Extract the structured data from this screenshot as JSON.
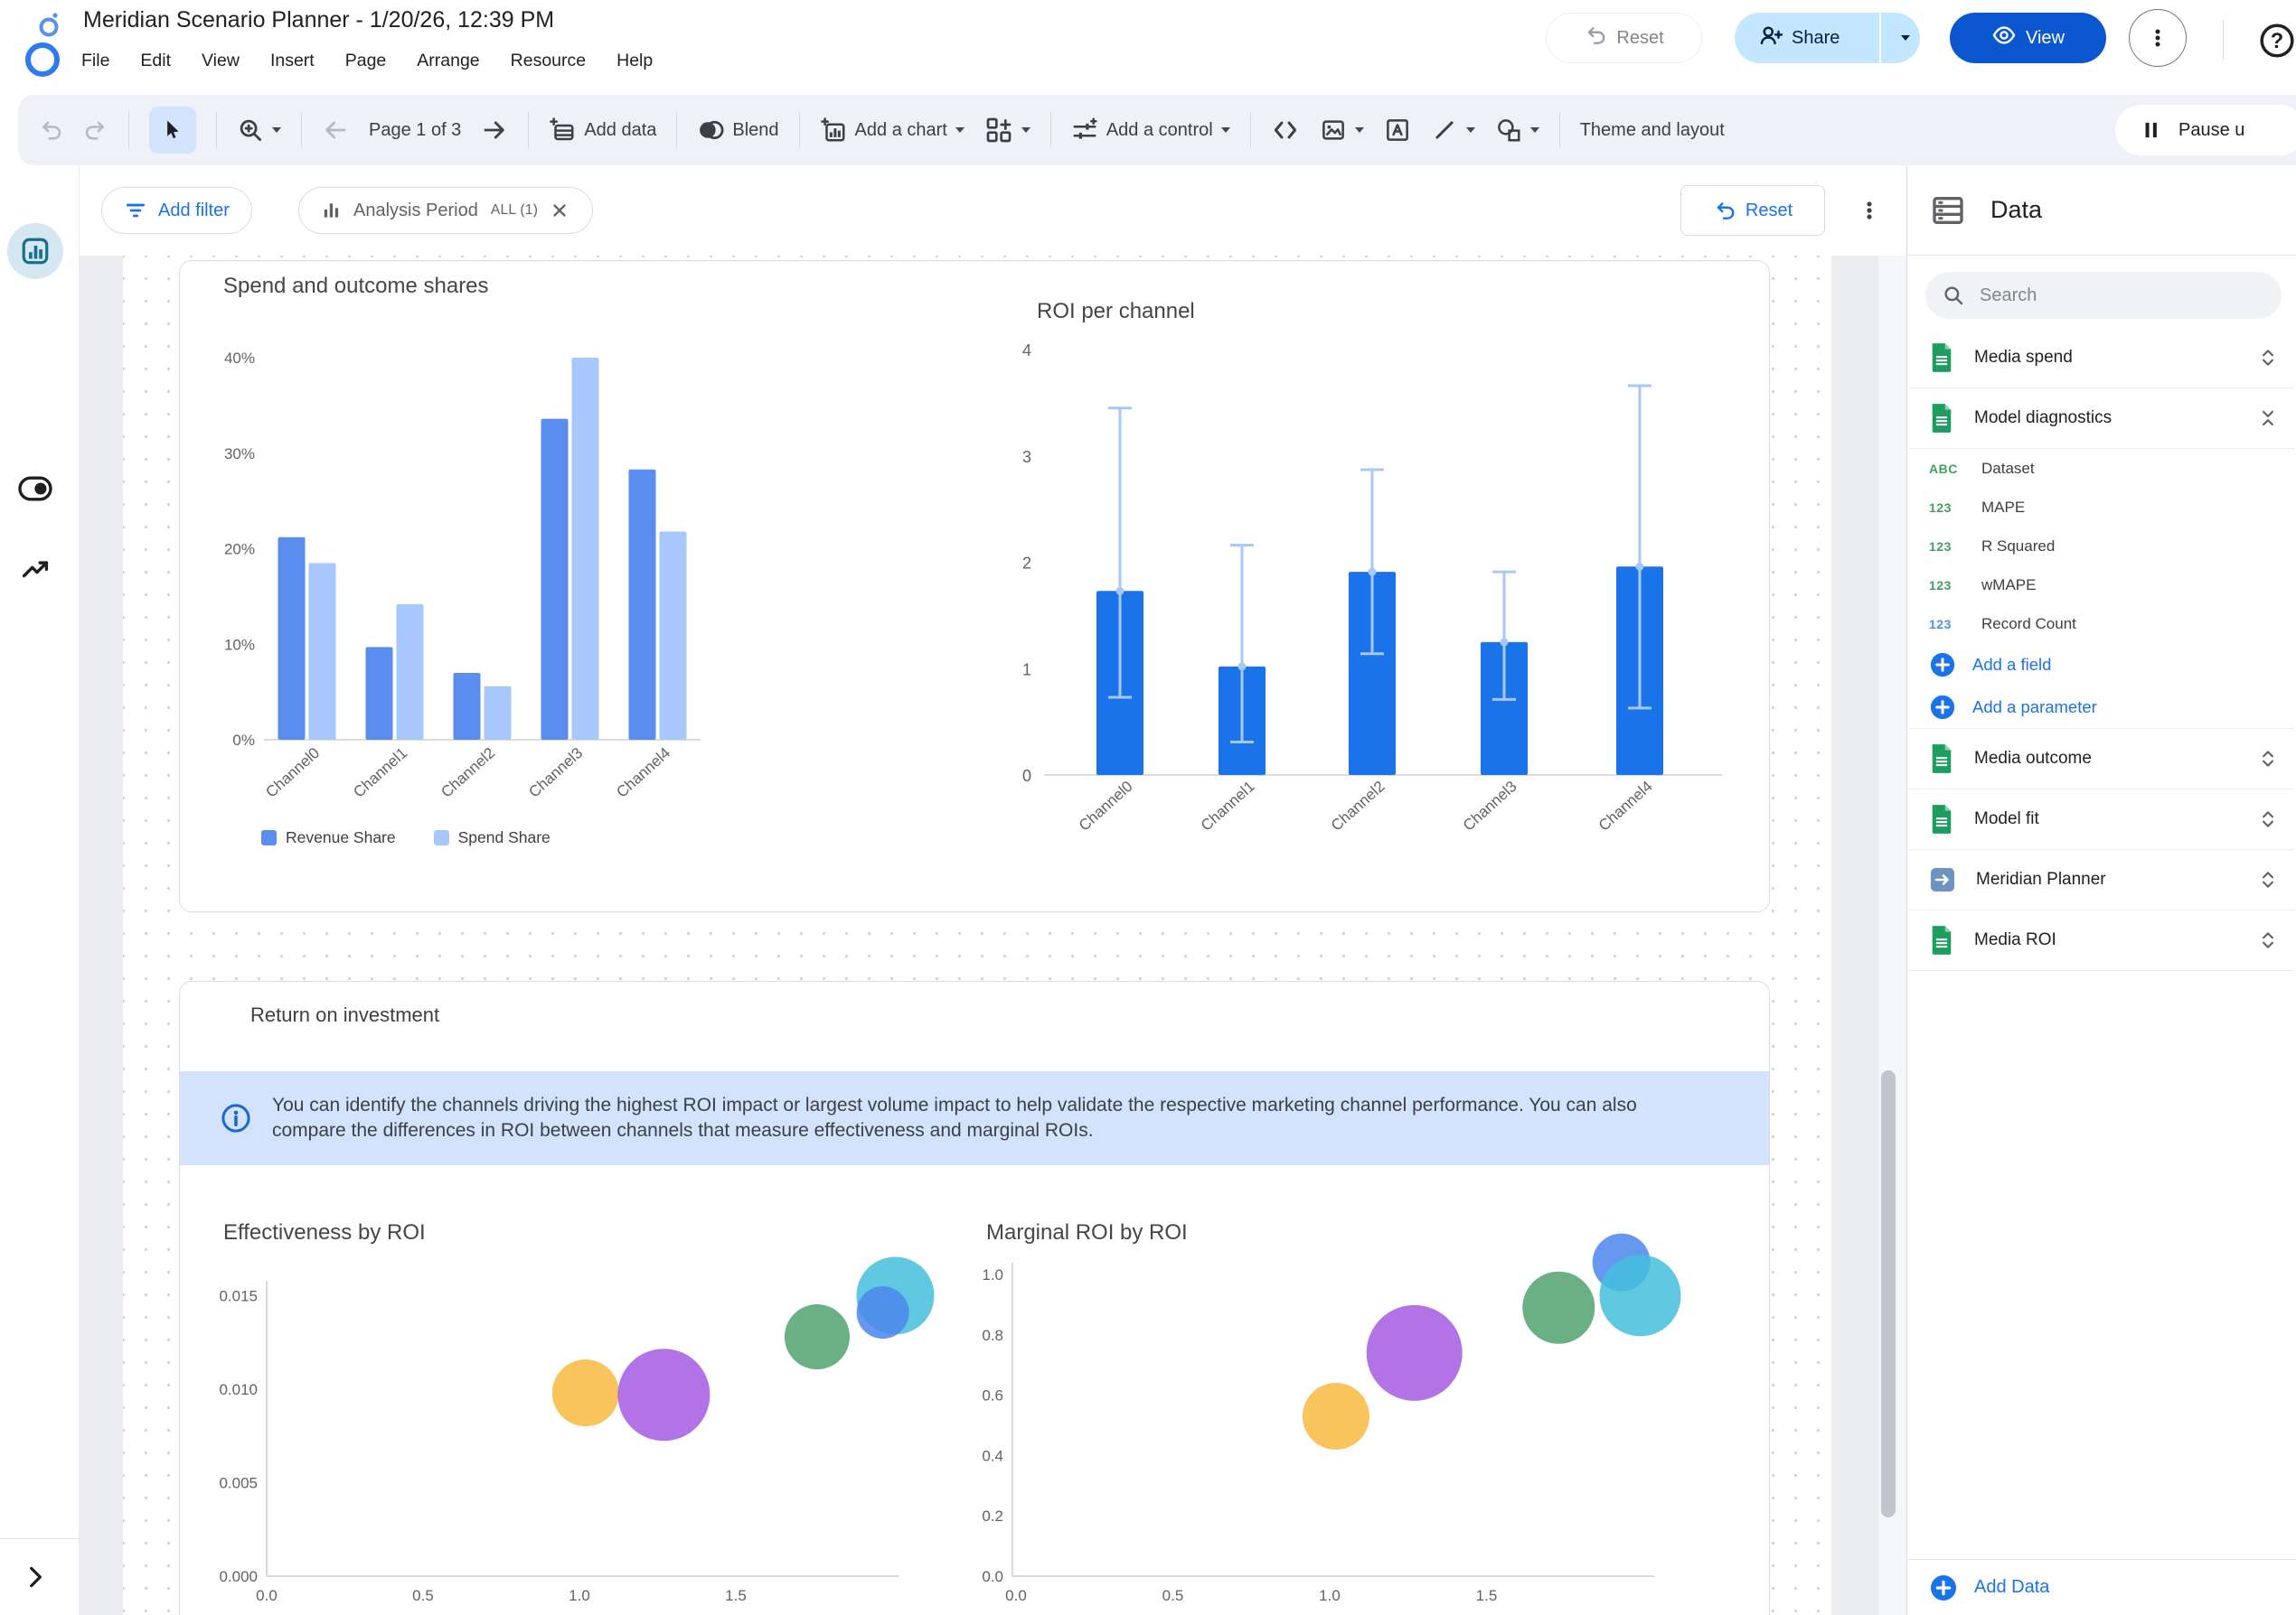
{
  "header": {
    "title": "Meridian Scenario Planner - 1/20/26, 12:39 PM",
    "menu": [
      "File",
      "Edit",
      "View",
      "Insert",
      "Page",
      "Arrange",
      "Resource",
      "Help"
    ],
    "reset_label": "Reset",
    "share_label": "Share",
    "view_label": "View"
  },
  "toolbar": {
    "page_indicator": "Page 1 of 3",
    "add_data": "Add data",
    "blend": "Blend",
    "add_chart": "Add a chart",
    "add_control": "Add a control",
    "theme_layout": "Theme and layout",
    "pause_updates": "Pause u"
  },
  "filter_bar": {
    "add_filter": "Add filter",
    "chip_label": "Analysis Period",
    "chip_value": "ALL (1)",
    "reset": "Reset"
  },
  "page": {
    "section_title": "Return on investment",
    "info_banner": "You can identify the channels driving the highest ROI impact or largest volume impact to help validate the respective marketing channel performance. You can also compare the differences in ROI between channels that measure effectiveness and marginal ROIs."
  },
  "data_panel": {
    "title": "Data",
    "search_placeholder": "Search",
    "add_field": "Add a field",
    "add_parameter": "Add a parameter",
    "add_data": "Add Data",
    "sources": [
      {
        "label": "Media spend",
        "icon": "sheets-icon"
      },
      {
        "label": "Model diagnostics",
        "icon": "sheets-icon"
      },
      {
        "label": "Media outcome",
        "icon": "sheets-icon"
      },
      {
        "label": "Model fit",
        "icon": "sheets-icon"
      },
      {
        "label": "Meridian Planner",
        "icon": "connector-icon"
      },
      {
        "label": "Media ROI",
        "icon": "sheets-icon"
      }
    ],
    "fields": [
      {
        "label": "Dataset",
        "type": "ABC",
        "color": "green"
      },
      {
        "label": "MAPE",
        "type": "123",
        "color": "green"
      },
      {
        "label": "R Squared",
        "type": "123",
        "color": "green"
      },
      {
        "label": "wMAPE",
        "type": "123",
        "color": "green"
      },
      {
        "label": "Record Count",
        "type": "123",
        "color": "blue"
      }
    ]
  },
  "colors": {
    "accent_blue": "#1a73e8",
    "view_button": "#0b57d0",
    "share_button_bg": "#c2e7ff",
    "banner_bg": "#d3e3fd",
    "revenue_bar": "#5A8DEE",
    "spend_bar": "#A8C7FA",
    "roi_bar": "#1A73E8",
    "error_bar": "#A8C7FA"
  },
  "chart_data": [
    {
      "id": "spend_outcome_shares",
      "type": "bar",
      "title": "Spend and outcome shares",
      "categories": [
        "Channel0",
        "Channel1",
        "Channel2",
        "Channel3",
        "Channel4"
      ],
      "series": [
        {
          "name": "Revenue Share",
          "color": "#5A8DEE",
          "values": [
            21.2,
            9.7,
            7.0,
            33.6,
            28.3
          ]
        },
        {
          "name": "Spend Share",
          "color": "#A8C7FA",
          "values": [
            18.5,
            14.2,
            5.6,
            40.0,
            21.8
          ]
        }
      ],
      "yticks": [
        "0%",
        "10%",
        "20%",
        "30%",
        "40%"
      ],
      "ylim": [
        0,
        40
      ],
      "legend_position": "bottom",
      "grid": false
    },
    {
      "id": "roi_per_channel",
      "type": "bar",
      "title": "ROI per channel",
      "categories": [
        "Channel0",
        "Channel1",
        "Channel2",
        "Channel3",
        "Channel4"
      ],
      "values": [
        1.73,
        1.02,
        1.91,
        1.25,
        1.96
      ],
      "error_low": [
        0.73,
        0.31,
        1.14,
        0.71,
        0.63
      ],
      "error_high": [
        3.45,
        2.16,
        2.87,
        1.91,
        3.66
      ],
      "bar_color": "#1A73E8",
      "error_color": "#A8C7FA",
      "yticks": [
        "0",
        "1",
        "2",
        "3",
        "4"
      ],
      "ylim": [
        0,
        4
      ],
      "grid": false
    },
    {
      "id": "effectiveness_by_roi",
      "type": "scatter",
      "title": "Effectiveness by ROI",
      "xticks": [
        "0.0",
        "0.5",
        "1.0",
        "1.5"
      ],
      "yticks": [
        "0.000",
        "0.005",
        "0.010",
        "0.015"
      ],
      "xlim": [
        0,
        2.0
      ],
      "ylim": [
        0,
        0.0165
      ],
      "points": [
        {
          "x": 1.02,
          "y": 0.0098,
          "r": 37,
          "color": "#F7BA3E",
          "name": "bubble-yellow"
        },
        {
          "x": 1.27,
          "y": 0.0097,
          "r": 51,
          "color": "#A55BE3",
          "name": "bubble-purple"
        },
        {
          "x": 1.76,
          "y": 0.0128,
          "r": 36,
          "color": "#51A170",
          "name": "bubble-green"
        },
        {
          "x": 2.01,
          "y": 0.015,
          "r": 43,
          "color": "#45BEDC",
          "name": "bubble-cyan"
        },
        {
          "x": 1.97,
          "y": 0.0141,
          "r": 29,
          "color": "#4C86EC",
          "name": "bubble-blue"
        }
      ]
    },
    {
      "id": "marginal_roi_by_roi",
      "type": "scatter",
      "title": "Marginal ROI by ROI",
      "xticks": [
        "0.0",
        "0.5",
        "1.0",
        "1.5"
      ],
      "yticks": [
        "0.0",
        "0.2",
        "0.4",
        "0.6",
        "0.8",
        "1.0"
      ],
      "xlim": [
        0,
        2.0
      ],
      "ylim": [
        0,
        1.15
      ],
      "points": [
        {
          "x": 1.02,
          "y": 0.53,
          "r": 37,
          "color": "#F7BA3E",
          "name": "bubble-yellow"
        },
        {
          "x": 1.27,
          "y": 0.74,
          "r": 53,
          "color": "#A55BE3",
          "name": "bubble-purple"
        },
        {
          "x": 1.73,
          "y": 0.89,
          "r": 40,
          "color": "#51A170",
          "name": "bubble-green"
        },
        {
          "x": 1.93,
          "y": 1.04,
          "r": 32,
          "color": "#4C86EC",
          "name": "bubble-blue"
        },
        {
          "x": 1.99,
          "y": 0.93,
          "r": 45,
          "color": "#45BEDC",
          "name": "bubble-cyan"
        }
      ]
    }
  ]
}
